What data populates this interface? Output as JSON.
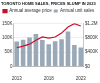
{
  "chart_data": {
    "type": "bar",
    "title": "TORONTO HOME SALES, PRICES SLUMP IN 2023",
    "categories": [
      "2013",
      null,
      null,
      null,
      null,
      "2018",
      null,
      null,
      null,
      null,
      "2023"
    ],
    "series": [
      {
        "name": "Annual unit sales",
        "type": "bar",
        "color": "#9aa9b8",
        "values": [
          87000,
          92800,
          101200,
          113100,
          92300,
          77400,
          87800,
          95100,
          121700,
          75100,
          65900
        ]
      },
      {
        "name": "Annual average price",
        "type": "line",
        "color": "#c8102e",
        "axis": "y2",
        "values": [
          523000,
          566000,
          622000,
          730000,
          822000,
          787000,
          819000,
          929000,
          1095000,
          1190000,
          1126000
        ]
      }
    ],
    "ylim": [
      0,
      150000
    ],
    "yticks": [
      0,
      {
        "value": 50000,
        "label": "50K"
      },
      {
        "value": 100000,
        "label": "100K"
      },
      {
        "value": 150000,
        "label": "150K"
      }
    ],
    "y2lim": [
      0,
      1200000
    ],
    "y2ticks": [
      {
        "value": 0,
        "label": "$0"
      },
      {
        "value": 400000,
        "label": "$400K"
      },
      {
        "value": 800000,
        "label": "$800K"
      },
      {
        "value": 1200000,
        "label": "$1.2M"
      }
    ],
    "grid": true,
    "legend": "top-left"
  }
}
